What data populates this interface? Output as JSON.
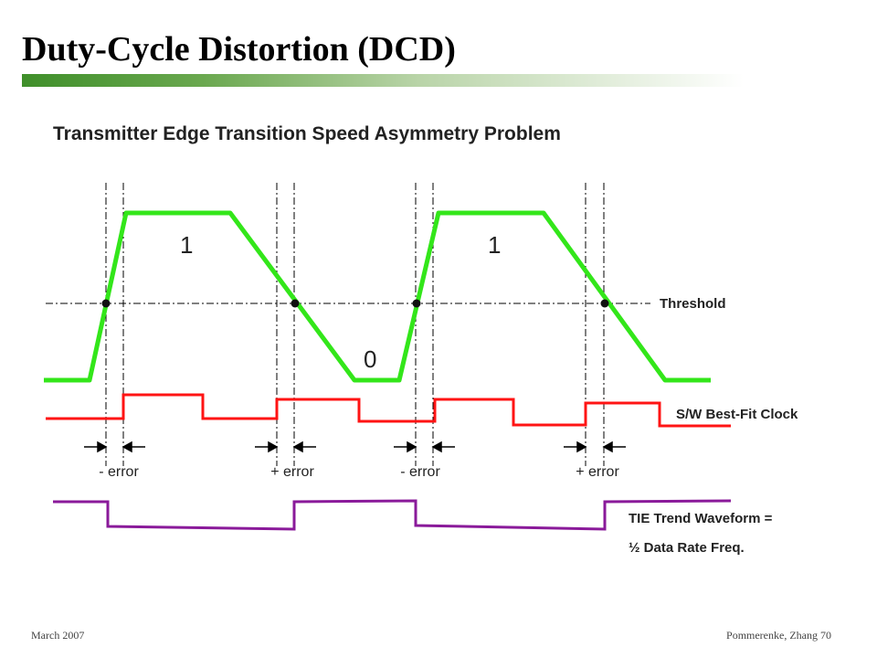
{
  "slide": {
    "title": "Duty-Cycle Distortion (DCD)",
    "footer_date": "March 2007",
    "footer_author_page": "Pommerenke, Zhang   70"
  },
  "diagram": {
    "heading": "Transmitter Edge Transition Speed Asymmetry Problem",
    "bit_labels": [
      "1",
      "0",
      "1"
    ],
    "threshold_label": "Threshold",
    "clock_label": "S/W Best-Fit Clock",
    "error_labels": [
      "- error",
      "+ error",
      "- error",
      "+ error"
    ],
    "tie_label_line1": "TIE Trend Waveform =",
    "tie_label_line2": "½ Data Rate Freq.",
    "colors": {
      "signal": "#33e61a",
      "clock": "#ff1414",
      "tie": "#8a1a9a",
      "lines": "#000000"
    }
  }
}
